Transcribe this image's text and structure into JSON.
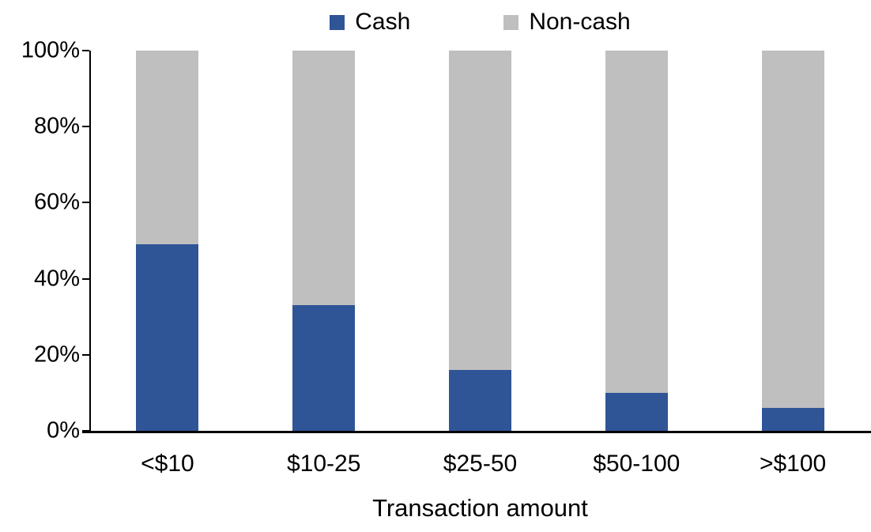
{
  "chart_data": {
    "type": "bar",
    "stacked": true,
    "percent_stacked": true,
    "title": "",
    "xlabel": "Transaction amount",
    "ylabel": "",
    "categories": [
      "<$10",
      "$10-25",
      "$25-50",
      "$50-100",
      ">$100"
    ],
    "series": [
      {
        "name": "Cash",
        "color": "#2F5597",
        "values": [
          49,
          33,
          16,
          10,
          6
        ]
      },
      {
        "name": "Non-cash",
        "color": "#BFBFBF",
        "values": [
          51,
          67,
          84,
          90,
          94
        ]
      }
    ],
    "ylim": [
      0,
      100
    ],
    "ytick_labels": [
      "0%",
      "20%",
      "40%",
      "60%",
      "80%",
      "100%"
    ],
    "ytick_values": [
      0,
      20,
      40,
      60,
      80,
      100
    ],
    "grid": false,
    "legend_position": "top",
    "axis_color": "#000000"
  }
}
